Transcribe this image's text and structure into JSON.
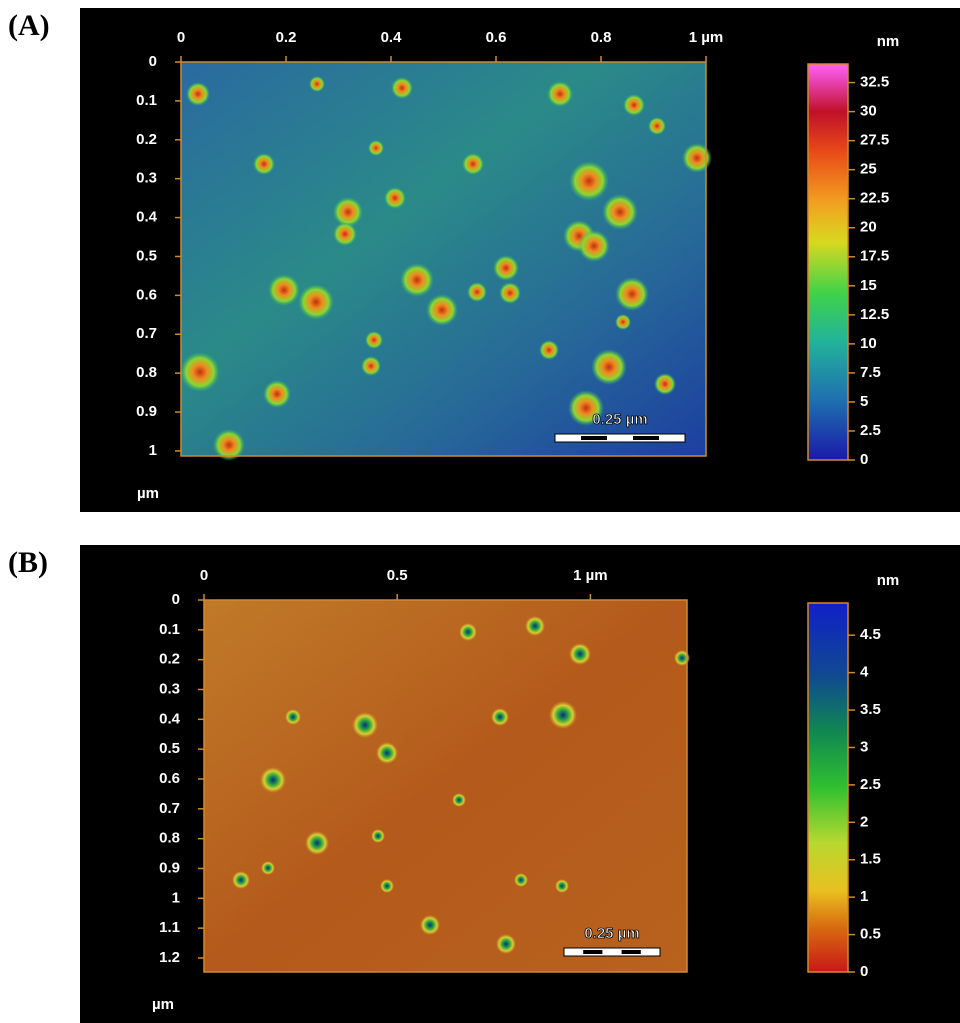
{
  "panels": [
    {
      "label": "(A)",
      "xticks": [
        0,
        0.2,
        0.4,
        0.6,
        0.8,
        {
          "value": 1,
          "label": "1 µm"
        }
      ],
      "xlim": [
        0,
        1
      ],
      "yticks": [
        0,
        0.1,
        0.2,
        0.3,
        0.4,
        0.5,
        0.6,
        0.7,
        0.8,
        0.9,
        1
      ],
      "ylim": [
        0,
        1.013
      ],
      "y_unit": "µm",
      "colorbar": {
        "unit": "nm",
        "lim": [
          0,
          34.1
        ],
        "ticks": [
          0,
          2.5,
          5,
          7.5,
          10,
          12.5,
          15,
          17.5,
          20,
          22.5,
          25,
          27.5,
          30,
          32.5
        ]
      },
      "scale_bar": "0.25 µm"
    },
    {
      "label": "(B)",
      "xticks": [
        0,
        0.5,
        {
          "value": 1,
          "label": "1 µm"
        }
      ],
      "xlim": [
        0,
        1.25
      ],
      "yticks": [
        0,
        0.1,
        0.2,
        0.3,
        0.4,
        0.5,
        0.6,
        0.7,
        0.8,
        0.9,
        1,
        1.1,
        1.2
      ],
      "ylim": [
        0,
        1.247
      ],
      "y_unit": "µm",
      "colorbar": {
        "unit": "nm",
        "lim": [
          0,
          4.93
        ],
        "ticks": [
          0,
          0.5,
          1,
          1.5,
          2,
          2.5,
          3,
          3.5,
          4,
          4.5
        ]
      },
      "scale_bar": "0.25 µm"
    }
  ]
}
